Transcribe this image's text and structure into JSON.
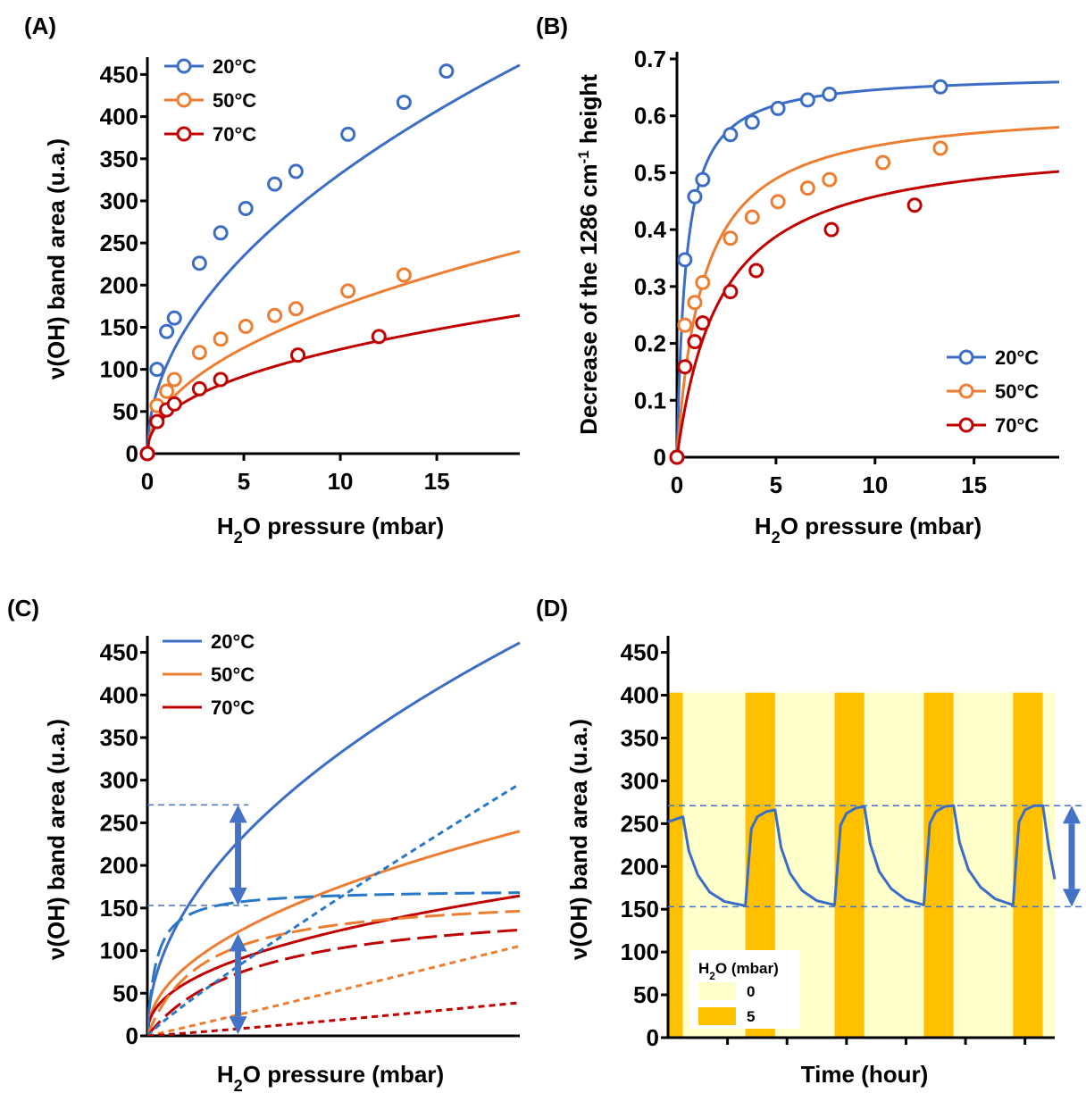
{
  "colors": {
    "blue": "#3C6DC5",
    "blue_dash": "#2878C8",
    "orange": "#ED7D31",
    "red": "#C00000",
    "stripe_light": "#FFFFCC",
    "stripe_dark": "#FFC000",
    "guide": "#4472C4",
    "arrow": "#4472C4"
  },
  "chart_data": [
    {
      "panel_label": "(A)",
      "type": "scatter",
      "xlabel": {
        "main": "H",
        "sub": "2",
        "rest": "O pressure (mbar)"
      },
      "ylabel": "ν(OH) band area (u.a.)",
      "xlim": [
        0,
        19.3
      ],
      "ylim": [
        0,
        460
      ],
      "xticks": [
        0,
        5,
        10,
        15
      ],
      "yticks": [
        0,
        50,
        100,
        150,
        200,
        250,
        300,
        350,
        400,
        450
      ],
      "legend_position": "top-left",
      "series": [
        {
          "name": "20°C",
          "color": "blue",
          "marker": "circle",
          "x": [
            0,
            0.5,
            1.0,
            1.4,
            2.7,
            3.8,
            5.1,
            6.6,
            7.7,
            10.4,
            13.3,
            15.5
          ],
          "y": [
            0,
            100,
            145,
            161,
            226,
            262,
            291,
            320,
            335,
            379,
            417,
            454
          ],
          "fit": {
            "a": 105,
            "n": 0.5
          }
        },
        {
          "name": "50°C",
          "color": "orange",
          "marker": "circle",
          "x": [
            0,
            0.5,
            1.0,
            1.4,
            2.7,
            3.8,
            5.1,
            6.6,
            7.7,
            10.4,
            13.3
          ],
          "y": [
            0,
            57,
            74,
            88,
            120,
            136,
            151,
            164,
            172,
            193,
            212
          ],
          "fit": {
            "a": 58,
            "n": 0.48
          }
        },
        {
          "name": "70°C",
          "color": "red",
          "marker": "circle",
          "x": [
            0,
            0.5,
            1.0,
            1.4,
            2.7,
            3.8,
            7.8,
            12.0
          ],
          "y": [
            0,
            38,
            52,
            59,
            77,
            88,
            117,
            139
          ],
          "fit": {
            "a": 46,
            "n": 0.43
          }
        }
      ]
    },
    {
      "panel_label": "(B)",
      "type": "scatter",
      "xlabel": {
        "main": "H",
        "sub": "2",
        "rest": "O pressure (mbar)"
      },
      "ylabel": {
        "main": "Decrease of the 1286 cm",
        "sup": "-1",
        "rest": " height"
      },
      "xlim": [
        0,
        19.3
      ],
      "ylim": [
        0,
        0.7
      ],
      "xticks": [
        0,
        5,
        10,
        15
      ],
      "yticks": [
        0,
        0.1,
        0.2,
        0.3,
        0.4,
        0.5,
        0.6,
        0.7
      ],
      "legend_position": "bottom-right",
      "series": [
        {
          "name": "20°C",
          "color": "blue",
          "marker": "circle",
          "x": [
            0,
            0.4,
            0.9,
            1.3,
            2.7,
            3.8,
            5.1,
            6.6,
            7.7,
            13.3
          ],
          "y": [
            0,
            0.347,
            0.458,
            0.488,
            0.567,
            0.589,
            0.613,
            0.628,
            0.638,
            0.651
          ],
          "fit": {
            "qm": 0.675,
            "k": 2.2
          }
        },
        {
          "name": "50°C",
          "color": "orange",
          "marker": "circle",
          "x": [
            0,
            0.4,
            0.9,
            1.3,
            2.7,
            3.8,
            5.1,
            6.6,
            7.7,
            10.4,
            13.3
          ],
          "y": [
            0,
            0.232,
            0.272,
            0.307,
            0.385,
            0.422,
            0.449,
            0.473,
            0.488,
            0.518,
            0.543
          ],
          "fit": {
            "qm": 0.62,
            "k": 0.75
          }
        },
        {
          "name": "70°C",
          "color": "red",
          "marker": "circle",
          "x": [
            0,
            0.4,
            0.9,
            1.3,
            2.7,
            4.0,
            7.8,
            12.0
          ],
          "y": [
            0,
            0.159,
            0.203,
            0.236,
            0.291,
            0.328,
            0.4,
            0.443
          ],
          "fit": {
            "qm": 0.56,
            "k": 0.45
          }
        }
      ]
    },
    {
      "panel_label": "(C)",
      "type": "line",
      "xlabel": {
        "main": "H",
        "sub": "2",
        "rest": "O pressure (mbar)"
      },
      "ylabel": "ν(OH) band area (u.a.)",
      "xlim": [
        0,
        19.3
      ],
      "ylim": [
        0,
        460
      ],
      "xticks": [],
      "yticks": [
        0,
        50,
        100,
        150,
        200,
        250,
        300,
        350,
        400,
        450
      ],
      "legend_position": "top-left",
      "reference_lines_y": [
        271,
        153
      ],
      "arrows": [
        {
          "x": 4.7,
          "y_from": 271,
          "y_to": 153
        },
        {
          "x": 4.7,
          "y_from": 120,
          "y_to": 2
        }
      ],
      "series": [
        {
          "name": "20°C",
          "color": "blue",
          "style": "solid",
          "fit": {
            "a": 105,
            "n": 0.5
          }
        },
        {
          "name": "50°C",
          "color": "orange",
          "style": "solid",
          "fit": {
            "a": 58,
            "n": 0.48
          }
        },
        {
          "name": "70°C",
          "color": "red",
          "style": "solid",
          "fit": {
            "a": 46,
            "n": 0.43
          }
        },
        {
          "name": "",
          "color": "blue_dash",
          "style": "long-dash",
          "fit": {
            "qm": 172,
            "k": 2.2
          }
        },
        {
          "name": "",
          "color": "orange",
          "style": "long-dash",
          "fit": {
            "qm": 168,
            "k": 0.35
          }
        },
        {
          "name": "",
          "color": "red",
          "style": "long-dash",
          "fit": {
            "qm": 160,
            "k": 0.18
          }
        },
        {
          "name": "",
          "color": "blue_dash",
          "style": "short-dash",
          "fit": {
            "a": 20,
            "n": 0.91
          }
        },
        {
          "name": "",
          "color": "orange",
          "style": "short-dash",
          "fit": {
            "a": 5,
            "n": 1.03
          }
        },
        {
          "name": "",
          "color": "red",
          "style": "short-dash",
          "fit": {
            "a": 1.5,
            "n": 1.1
          }
        }
      ]
    },
    {
      "panel_label": "(D)",
      "type": "line",
      "xlabel": "Time (hour)",
      "ylabel": "ν(OH) band area (u.a.)",
      "xlim": [
        0,
        13
      ],
      "ylim": [
        0,
        460
      ],
      "yticks": [
        0,
        50,
        100,
        150,
        200,
        250,
        300,
        350,
        400,
        450
      ],
      "legend_title": {
        "main": "H",
        "sub": "2",
        "rest": "O (mbar)"
      },
      "legend_entries": [
        {
          "label": "0",
          "color": "stripe_light"
        },
        {
          "label": "5",
          "color": "stripe_dark"
        }
      ],
      "reference_lines_y": [
        271,
        153
      ],
      "arrows": [
        {
          "x": 13.65,
          "y_from": 271,
          "y_to": 153
        }
      ],
      "pressure_schedule": [
        {
          "start": 0.0,
          "end": 0.5,
          "value": 5
        },
        {
          "start": 0.5,
          "end": 2.6,
          "value": 0
        },
        {
          "start": 2.6,
          "end": 3.6,
          "value": 5
        },
        {
          "start": 3.6,
          "end": 5.6,
          "value": 0
        },
        {
          "start": 5.6,
          "end": 6.6,
          "value": 5
        },
        {
          "start": 6.6,
          "end": 8.6,
          "value": 0
        },
        {
          "start": 8.6,
          "end": 9.6,
          "value": 5
        },
        {
          "start": 9.6,
          "end": 11.6,
          "value": 0
        },
        {
          "start": 11.6,
          "end": 12.6,
          "value": 5
        },
        {
          "start": 12.6,
          "end": 13.0,
          "value": 0
        }
      ],
      "stripe_top_value": 403,
      "series": [
        {
          "name": "",
          "color": "blue",
          "x": [
            0,
            0.5,
            0.7,
            1.0,
            1.4,
            1.9,
            2.6,
            2.7,
            2.8,
            3.0,
            3.3,
            3.6,
            3.8,
            4.1,
            4.5,
            5.0,
            5.6,
            5.7,
            5.8,
            6.0,
            6.3,
            6.6,
            6.8,
            7.1,
            7.5,
            8.0,
            8.6,
            8.7,
            8.8,
            9.0,
            9.3,
            9.6,
            9.8,
            10.1,
            10.5,
            11.0,
            11.6,
            11.7,
            11.8,
            12.0,
            12.3,
            12.6,
            12.8,
            13.0
          ],
          "y": [
            252,
            258,
            218,
            190,
            170,
            159,
            154,
            200,
            244,
            258,
            264,
            266,
            222,
            192,
            172,
            160,
            155,
            202,
            248,
            262,
            268,
            270,
            226,
            194,
            174,
            161,
            155,
            204,
            250,
            264,
            270,
            271,
            228,
            196,
            176,
            162,
            155,
            206,
            252,
            266,
            271,
            271,
            222,
            185
          ]
        }
      ]
    }
  ]
}
